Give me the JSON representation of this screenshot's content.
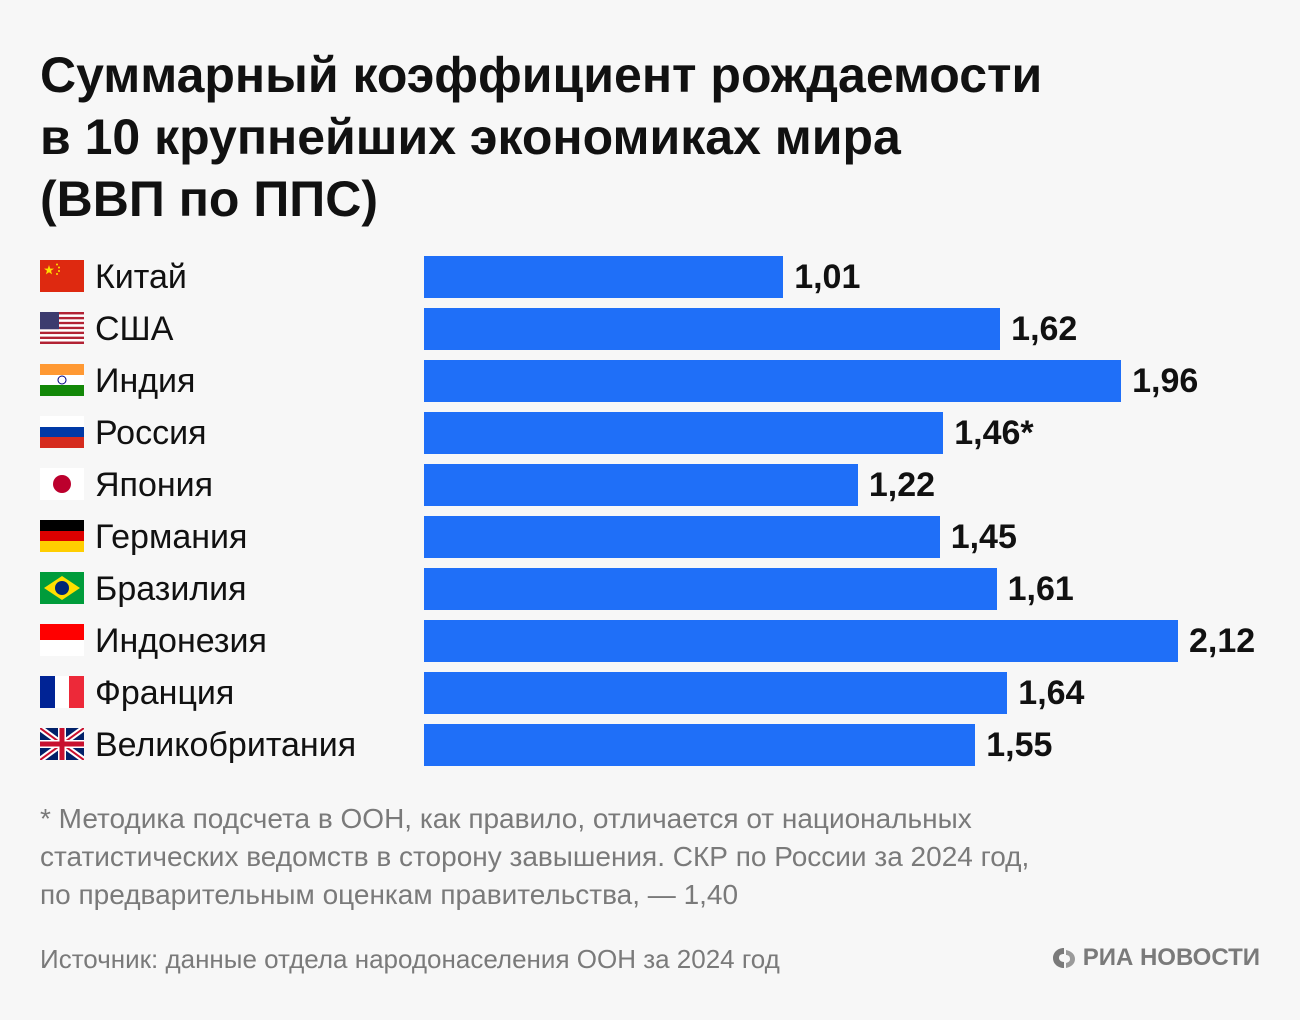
{
  "title_lines": [
    "Суммарный коэффициент рождаемости",
    "в 10 крупнейших экономиках мира",
    "(ВВП по ППС)"
  ],
  "chart_data": {
    "type": "bar",
    "orientation": "horizontal",
    "title": "Суммарный коэффициент рождаемости в 10 крупнейших экономиках мира (ВВП по ППС)",
    "categories": [
      "Китай",
      "США",
      "Индия",
      "Россия",
      "Япония",
      "Германия",
      "Бразилия",
      "Индонезия",
      "Франция",
      "Великобритания"
    ],
    "values": [
      1.01,
      1.62,
      1.96,
      1.46,
      1.22,
      1.45,
      1.61,
      2.12,
      1.64,
      1.55
    ],
    "value_labels": [
      "1,01",
      "1,62",
      "1,96",
      "1,46*",
      "1,22",
      "1,45",
      "1,61",
      "2,12",
      "1,64",
      "1,55"
    ],
    "flags": [
      "china-flag",
      "usa-flag",
      "india-flag",
      "russia-flag",
      "japan-flag",
      "germany-flag",
      "brazil-flag",
      "indonesia-flag",
      "france-flag",
      "uk-flag"
    ],
    "bar_color": "#1f6ff8",
    "xlim": [
      0,
      2.12
    ],
    "grid": false,
    "legend": "none"
  },
  "footnote_lines": [
    "* Методика подсчета в ООН, как правило, отличается от национальных",
    "статистических ведомств в сторону завышения. СКР по России за 2024 год,",
    "по предварительным оценкам правительства, — 1,40"
  ],
  "source": "Источник: данные отдела народонаселения ООН за 2024 год",
  "brand": "РИА НОВОСТИ"
}
